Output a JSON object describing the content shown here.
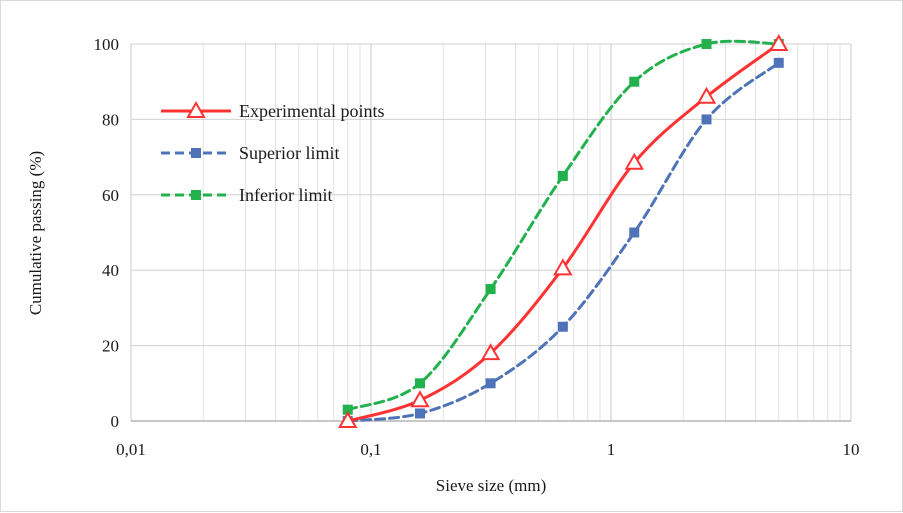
{
  "chart_data": {
    "type": "line",
    "xscale": "log",
    "xlim": [
      0.01,
      10
    ],
    "ylim": [
      0,
      100
    ],
    "xlabel": "Sieve size (mm)",
    "ylabel": "Cumulative passing (%)",
    "xticks": [
      "0,01",
      "0,1",
      "1",
      "10"
    ],
    "yticks": [
      "0",
      "20",
      "40",
      "60",
      "80",
      "100"
    ],
    "grid": true,
    "legend_position": "upper-left",
    "series": [
      {
        "name": "Experimental points",
        "color": "#ff3333",
        "line_style": "solid",
        "marker": "triangle-open",
        "x": [
          0.08,
          0.16,
          0.315,
          0.63,
          1.25,
          2.5,
          5
        ],
        "y": [
          0,
          5.5,
          18,
          40.5,
          68.5,
          86,
          100
        ]
      },
      {
        "name": "Superior limit",
        "color": "#4f73b8",
        "line_style": "dashed",
        "marker": "square",
        "x": [
          0.08,
          0.16,
          0.315,
          0.63,
          1.25,
          2.5,
          5
        ],
        "y": [
          0,
          2,
          10,
          25,
          50,
          80,
          95
        ]
      },
      {
        "name": "Inferior limit",
        "color": "#22b14c",
        "line_style": "dashed",
        "marker": "square",
        "x": [
          0.08,
          0.16,
          0.315,
          0.63,
          1.25,
          2.5,
          5
        ],
        "y": [
          3,
          10,
          35,
          65,
          90,
          100,
          100
        ]
      }
    ]
  }
}
